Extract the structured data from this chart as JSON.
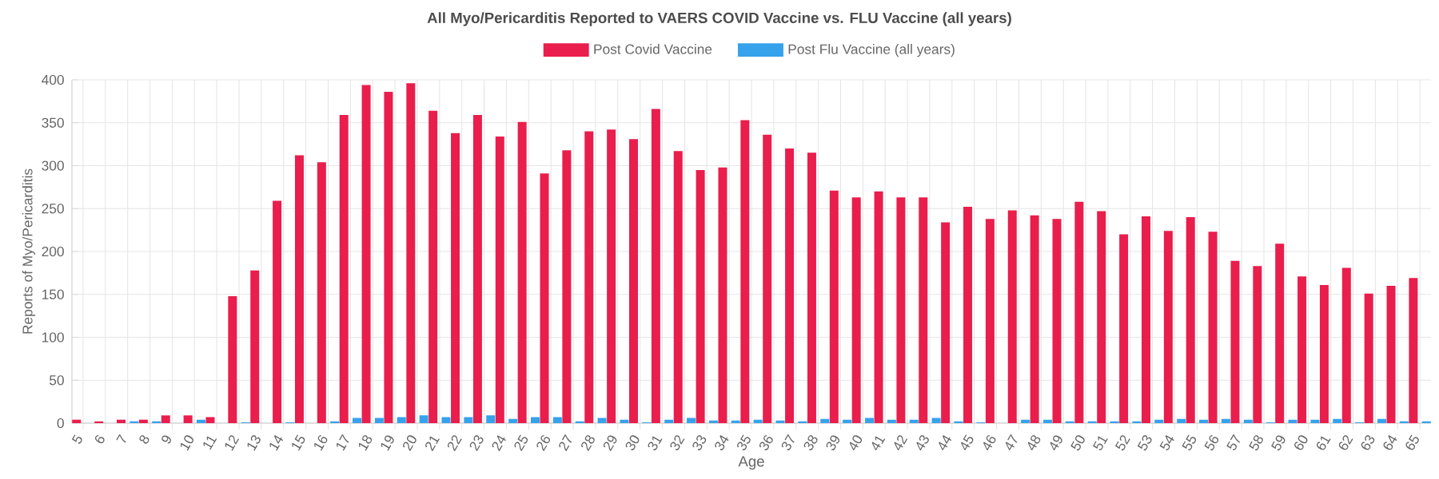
{
  "chart_data": {
    "type": "bar",
    "title": "All Myo/Pericarditis Reported to VAERS COVID Vaccine vs. FLU Vaccine (all years)",
    "xlabel": "Age",
    "ylabel": "Reports of Myo/Pericarditis",
    "categories": [
      "5",
      "6",
      "7",
      "8",
      "9",
      "10",
      "11",
      "12",
      "13",
      "14",
      "15",
      "16",
      "17",
      "18",
      "19",
      "20",
      "21",
      "22",
      "23",
      "24",
      "25",
      "26",
      "27",
      "28",
      "29",
      "30",
      "31",
      "32",
      "33",
      "34",
      "35",
      "36",
      "37",
      "38",
      "39",
      "40",
      "41",
      "42",
      "43",
      "44",
      "45",
      "46",
      "47",
      "48",
      "49",
      "50",
      "51",
      "52",
      "53",
      "54",
      "55",
      "56",
      "57",
      "58",
      "59",
      "60",
      "61",
      "62",
      "63",
      "64",
      "65"
    ],
    "series": [
      {
        "name": "Post Covid Vaccine",
        "color": "#e91e4c",
        "values": [
          4,
          2,
          4,
          4,
          9,
          9,
          7,
          148,
          178,
          259,
          312,
          304,
          359,
          394,
          386,
          396,
          364,
          338,
          359,
          334,
          351,
          291,
          318,
          340,
          342,
          331,
          366,
          317,
          295,
          298,
          353,
          336,
          320,
          315,
          271,
          263,
          270,
          263,
          263,
          234,
          252,
          238,
          248,
          242,
          238,
          258,
          247,
          220,
          241,
          224,
          240,
          223,
          189,
          183,
          209,
          171,
          161,
          181,
          151,
          160,
          169
        ]
      },
      {
        "name": "Post Flu Vaccine (all years)",
        "color": "#36a2eb",
        "values": [
          0,
          0,
          2,
          2,
          0,
          4,
          0,
          1,
          0,
          1,
          0,
          2,
          6,
          6,
          7,
          9,
          7,
          7,
          9,
          5,
          7,
          7,
          2,
          6,
          4,
          1,
          4,
          6,
          3,
          3,
          4,
          3,
          2,
          5,
          4,
          6,
          4,
          4,
          6,
          2,
          1,
          0,
          4,
          4,
          2,
          2,
          2,
          2,
          4,
          5,
          4,
          5,
          4,
          1,
          4,
          4,
          5,
          1,
          5,
          2,
          2
        ]
      }
    ],
    "ylim": [
      0,
      400
    ],
    "yticks": [
      0,
      50,
      100,
      150,
      200,
      250,
      300,
      350,
      400
    ],
    "grid": true,
    "legend": "top"
  }
}
